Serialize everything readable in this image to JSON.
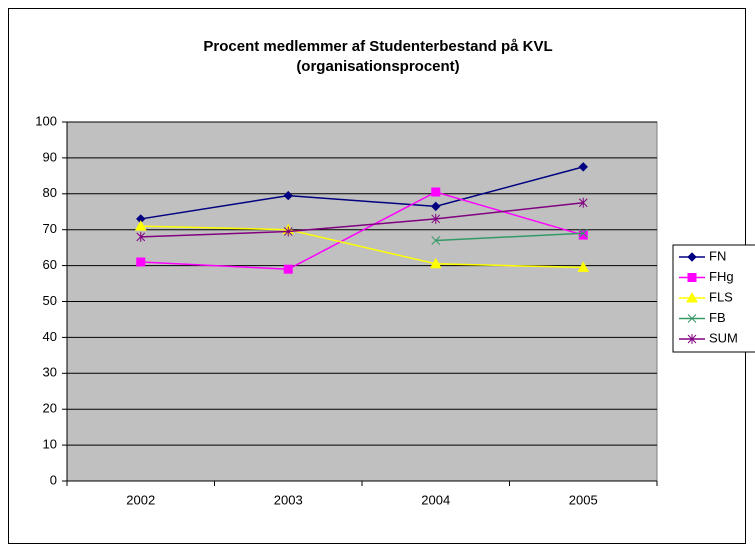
{
  "chart_data": {
    "type": "line",
    "title": [
      "Procent medlemmer af Studenterbestand på KVL",
      "(organisationsprocent)"
    ],
    "categories": [
      "2002",
      "2003",
      "2004",
      "2005"
    ],
    "series": [
      {
        "name": "FN",
        "color": "#000080",
        "marker": "diamond",
        "values": [
          73,
          79.5,
          76.5,
          87.5
        ]
      },
      {
        "name": "FHg",
        "color": "#ff00ff",
        "marker": "square",
        "values": [
          61,
          59,
          80.5,
          68.5
        ]
      },
      {
        "name": "FLS",
        "color": "#ffff00",
        "marker": "triangle",
        "values": [
          71,
          70,
          60.5,
          59.5
        ]
      },
      {
        "name": "FB",
        "color": "#339966",
        "marker": "x",
        "values": [
          null,
          null,
          67,
          69
        ]
      },
      {
        "name": "SUM",
        "color": "#800080",
        "marker": "star",
        "values": [
          68,
          69.5,
          73,
          77.5
        ]
      }
    ],
    "ylim": [
      0,
      100
    ],
    "yticks": [
      0,
      10,
      20,
      30,
      40,
      50,
      60,
      70,
      80,
      90,
      100
    ],
    "grid": true,
    "plot_background": "#c0c0c0",
    "legend": "right"
  }
}
